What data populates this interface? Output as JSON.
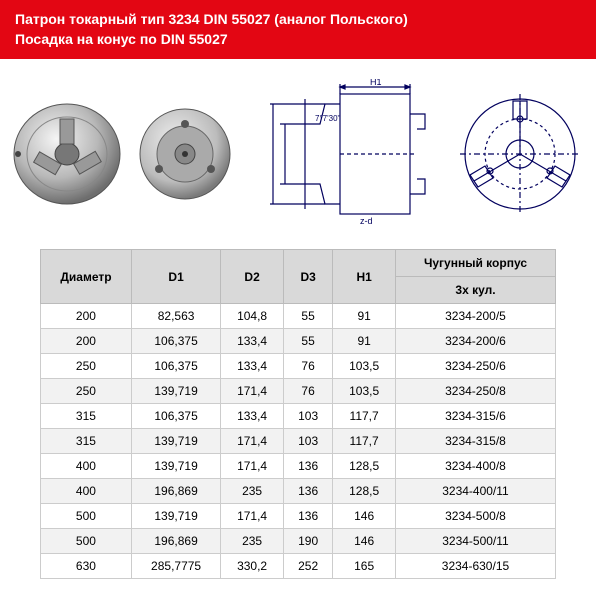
{
  "header": {
    "bg_color": "#e30613",
    "line1": "Патрон токарный тип 3234 DIN 55027  (аналог Польского)",
    "line2": "Посадка на конус по DIN 55027"
  },
  "table": {
    "columns": [
      "Диаметр",
      "D1",
      "D2",
      "D3",
      "H1",
      "Чугунный корпус"
    ],
    "subheader": "3х кул.",
    "rows": [
      [
        "200",
        "82,563",
        "104,8",
        "55",
        "91",
        "3234-200/5"
      ],
      [
        "200",
        "106,375",
        "133,4",
        "55",
        "91",
        "3234-200/6"
      ],
      [
        "250",
        "106,375",
        "133,4",
        "76",
        "103,5",
        "3234-250/6"
      ],
      [
        "250",
        "139,719",
        "171,4",
        "76",
        "103,5",
        "3234-250/8"
      ],
      [
        "315",
        "106,375",
        "133,4",
        "103",
        "117,7",
        "3234-315/6"
      ],
      [
        "315",
        "139,719",
        "171,4",
        "103",
        "117,7",
        "3234-315/8"
      ],
      [
        "400",
        "139,719",
        "171,4",
        "136",
        "128,5",
        "3234-400/8"
      ],
      [
        "400",
        "196,869",
        "235",
        "136",
        "128,5",
        "3234-400/11"
      ],
      [
        "500",
        "139,719",
        "171,4",
        "136",
        "146",
        "3234-500/8"
      ],
      [
        "500",
        "196,869",
        "235",
        "190",
        "146",
        "3234-500/11"
      ],
      [
        "630",
        "285,7775",
        "330,2",
        "252",
        "165",
        "3234-630/15"
      ]
    ]
  },
  "diagram_labels": {
    "h1": "H1",
    "h": "h",
    "h_small": "h1",
    "zd": "z-d",
    "angle": "7°7'30\""
  }
}
